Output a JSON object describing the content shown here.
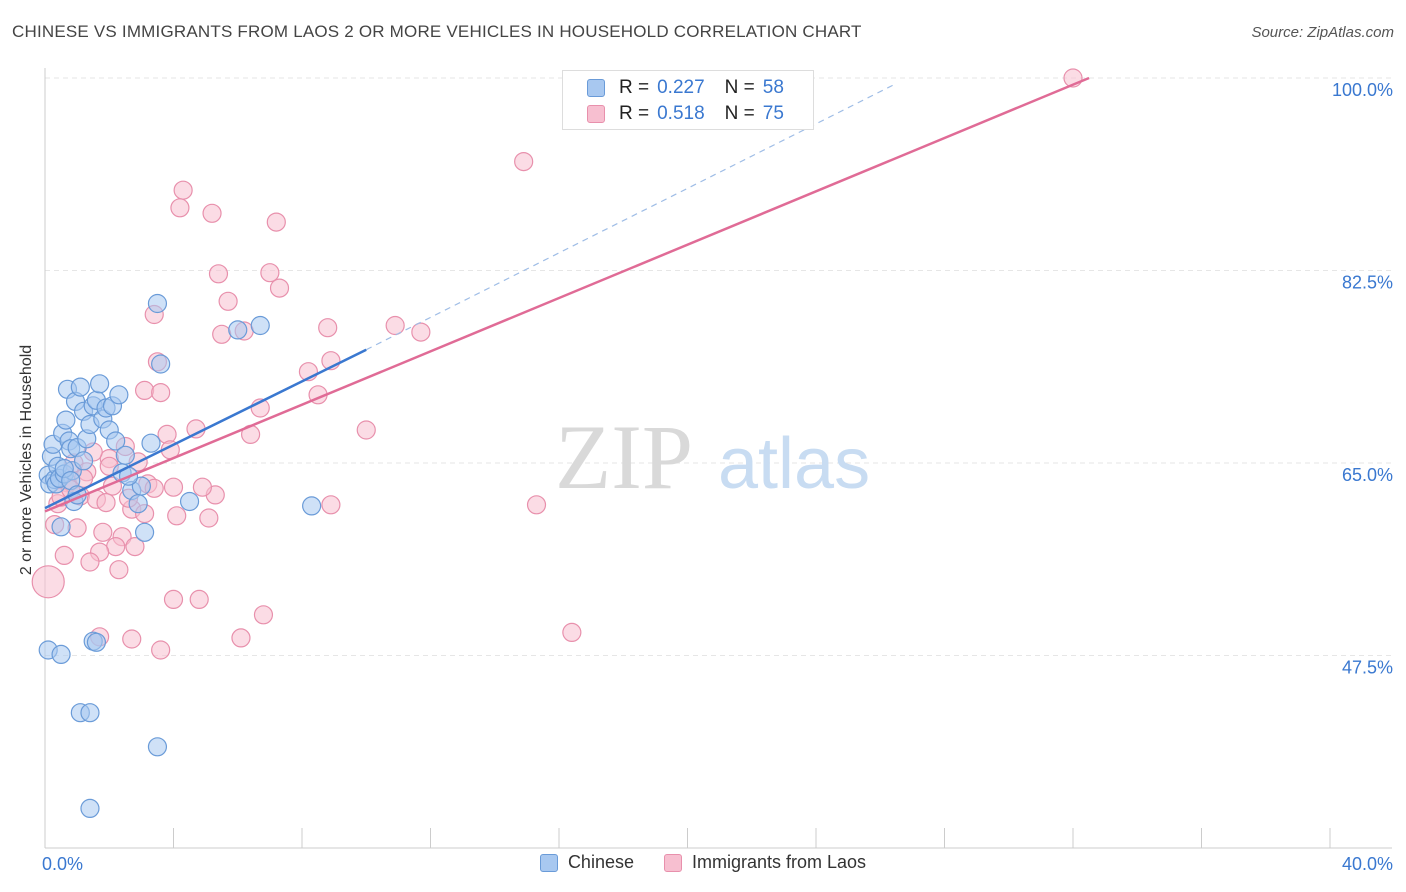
{
  "title": "CHINESE VS IMMIGRANTS FROM LAOS 2 OR MORE VEHICLES IN HOUSEHOLD CORRELATION CHART",
  "source": "Source: ZipAtlas.com",
  "watermark": {
    "zip": "ZIP",
    "atlas": "atlas"
  },
  "colors": {
    "chinese_fill": "#a8c8f0",
    "chinese_stroke": "#6a9bd8",
    "chinese_line": "#3a78d0",
    "laos_fill": "#f7bfd0",
    "laos_stroke": "#e890ac",
    "laos_line": "#e06b96",
    "tick_text": "#3a78d0",
    "grid": "#e6e6e6"
  },
  "legend": {
    "row1": {
      "r_label": "R =",
      "r_value": "0.227",
      "n_label": "N =",
      "n_value": "58"
    },
    "row2": {
      "r_label": "R =",
      "r_value": "0.518",
      "n_label": "N =",
      "n_value": "75"
    }
  },
  "bottom_legend": {
    "chinese": "Chinese",
    "laos": "Immigrants from Laos"
  },
  "chart_data": {
    "type": "scatter",
    "title": "CHINESE VS IMMIGRANTS FROM LAOS 2 OR MORE VEHICLES IN HOUSEHOLD CORRELATION CHART",
    "xlabel": "",
    "ylabel": "2 or more Vehicles in Household",
    "xlim": [
      0,
      40
    ],
    "ylim": [
      30,
      100
    ],
    "x_tick_labels": [
      "0.0%",
      "40.0%"
    ],
    "y_ticks": [
      {
        "value": 47.5,
        "label": "47.5%"
      },
      {
        "value": 65.0,
        "label": "65.0%"
      },
      {
        "value": 82.5,
        "label": "82.5%"
      },
      {
        "value": 100.0,
        "label": "100.0%"
      }
    ],
    "series": [
      {
        "name": "Chinese",
        "points": [
          [
            0.1,
            63.9
          ],
          [
            0.15,
            63.1
          ],
          [
            0.2,
            65.6
          ],
          [
            0.25,
            66.7
          ],
          [
            0.3,
            63.5
          ],
          [
            0.35,
            63.1
          ],
          [
            0.4,
            64.7
          ],
          [
            0.45,
            63.6
          ],
          [
            0.5,
            59.2
          ],
          [
            0.55,
            67.7
          ],
          [
            0.6,
            64.0
          ],
          [
            0.65,
            68.9
          ],
          [
            0.7,
            71.7
          ],
          [
            0.75,
            67.0
          ],
          [
            0.8,
            66.3
          ],
          [
            0.85,
            64.3
          ],
          [
            0.9,
            61.5
          ],
          [
            0.95,
            70.6
          ],
          [
            1.0,
            66.4
          ],
          [
            1.1,
            71.9
          ],
          [
            1.2,
            69.7
          ],
          [
            1.3,
            67.2
          ],
          [
            1.4,
            68.5
          ],
          [
            1.5,
            70.2
          ],
          [
            1.6,
            70.7
          ],
          [
            1.7,
            72.2
          ],
          [
            1.8,
            69.0
          ],
          [
            1.9,
            70.0
          ],
          [
            2.0,
            68.0
          ],
          [
            2.1,
            70.2
          ],
          [
            2.2,
            67.0
          ],
          [
            2.3,
            71.2
          ],
          [
            2.5,
            65.7
          ],
          [
            2.7,
            62.5
          ],
          [
            2.9,
            61.3
          ],
          [
            3.1,
            58.7
          ],
          [
            3.3,
            66.8
          ],
          [
            3.5,
            79.5
          ],
          [
            3.6,
            74.0
          ],
          [
            4.5,
            61.5
          ],
          [
            6.0,
            77.1
          ],
          [
            6.7,
            77.5
          ],
          [
            8.3,
            61.1
          ],
          [
            0.1,
            48.0
          ],
          [
            0.5,
            47.6
          ],
          [
            1.5,
            48.8
          ],
          [
            1.6,
            48.7
          ],
          [
            1.1,
            42.3
          ],
          [
            1.4,
            42.3
          ],
          [
            3.5,
            39.2
          ],
          [
            1.4,
            33.6
          ],
          [
            0.6,
            64.5
          ],
          [
            0.8,
            63.4
          ],
          [
            1.2,
            65.2
          ],
          [
            1.0,
            62.1
          ],
          [
            2.4,
            64.1
          ],
          [
            3.0,
            62.9
          ],
          [
            2.6,
            63.8
          ]
        ]
      },
      {
        "name": "Immigrants from Laos",
        "points": [
          [
            32.0,
            100.0
          ],
          [
            14.9,
            92.4
          ],
          [
            4.3,
            89.8
          ],
          [
            4.2,
            88.2
          ],
          [
            5.2,
            87.7
          ],
          [
            7.2,
            86.9
          ],
          [
            5.4,
            82.2
          ],
          [
            7.0,
            82.3
          ],
          [
            7.3,
            80.9
          ],
          [
            5.7,
            79.7
          ],
          [
            3.4,
            78.5
          ],
          [
            8.8,
            77.3
          ],
          [
            10.9,
            77.5
          ],
          [
            11.7,
            76.9
          ],
          [
            5.5,
            76.7
          ],
          [
            6.2,
            77.0
          ],
          [
            3.5,
            74.2
          ],
          [
            8.9,
            74.3
          ],
          [
            8.2,
            73.3
          ],
          [
            3.1,
            71.6
          ],
          [
            3.6,
            71.4
          ],
          [
            8.5,
            71.2
          ],
          [
            6.7,
            70.0
          ],
          [
            10.0,
            68.0
          ],
          [
            3.8,
            67.6
          ],
          [
            6.4,
            67.6
          ],
          [
            4.7,
            68.1
          ],
          [
            2.5,
            66.5
          ],
          [
            2.9,
            65.1
          ],
          [
            2.0,
            65.4
          ],
          [
            1.5,
            66.0
          ],
          [
            0.9,
            65.0
          ],
          [
            1.3,
            64.2
          ],
          [
            2.1,
            62.9
          ],
          [
            3.2,
            63.1
          ],
          [
            4.0,
            62.8
          ],
          [
            5.3,
            62.1
          ],
          [
            4.9,
            62.8
          ],
          [
            3.4,
            62.7
          ],
          [
            0.4,
            61.3
          ],
          [
            0.7,
            63.2
          ],
          [
            1.1,
            62.0
          ],
          [
            1.6,
            61.7
          ],
          [
            2.7,
            60.8
          ],
          [
            3.1,
            60.4
          ],
          [
            4.1,
            60.2
          ],
          [
            5.1,
            60.0
          ],
          [
            0.3,
            59.4
          ],
          [
            1.0,
            59.1
          ],
          [
            1.8,
            58.7
          ],
          [
            2.4,
            58.3
          ],
          [
            2.2,
            57.4
          ],
          [
            2.8,
            57.4
          ],
          [
            1.7,
            56.9
          ],
          [
            0.6,
            56.6
          ],
          [
            1.4,
            56.0
          ],
          [
            2.3,
            55.3
          ],
          [
            0.1,
            54.2
          ],
          [
            4.0,
            52.6
          ],
          [
            4.8,
            52.6
          ],
          [
            6.8,
            51.2
          ],
          [
            1.7,
            49.2
          ],
          [
            2.7,
            49.0
          ],
          [
            6.1,
            49.1
          ],
          [
            3.6,
            48.0
          ],
          [
            16.4,
            49.6
          ],
          [
            15.3,
            61.2
          ],
          [
            8.9,
            61.2
          ],
          [
            1.2,
            63.6
          ],
          [
            2.0,
            64.7
          ],
          [
            3.9,
            66.2
          ],
          [
            0.5,
            61.9
          ],
          [
            0.8,
            62.6
          ],
          [
            1.9,
            61.4
          ],
          [
            2.6,
            61.8
          ]
        ]
      }
    ],
    "trend_lines": [
      {
        "series": "Chinese",
        "solid": [
          [
            0,
            60.9
          ],
          [
            10,
            75.3
          ]
        ],
        "dashed": [
          [
            10,
            75.3
          ],
          [
            26.5,
            99.5
          ]
        ]
      },
      {
        "series": "Immigrants from Laos",
        "solid": [
          [
            0,
            60.6
          ],
          [
            32.5,
            100.0
          ]
        ]
      }
    ]
  }
}
